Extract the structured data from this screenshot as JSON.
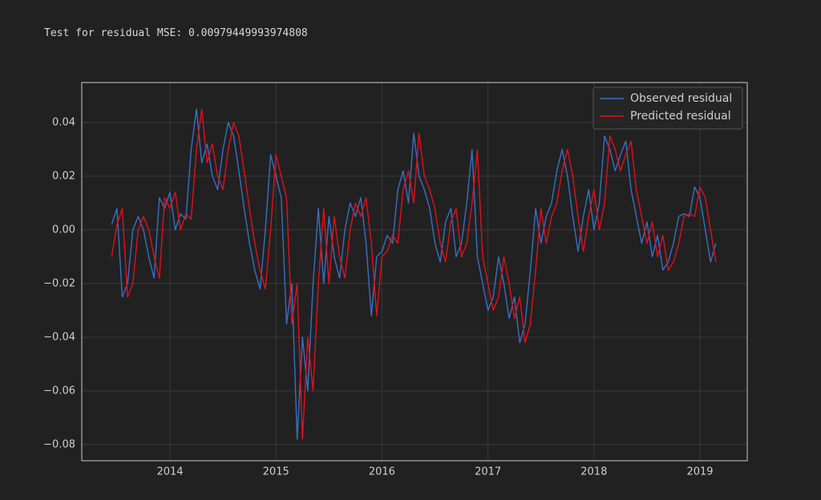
{
  "output_text": "Test for residual MSE: 0.00979449993974808",
  "chart_data": {
    "type": "line",
    "x": [
      2013.45,
      2013.5,
      2013.55,
      2013.6,
      2013.65,
      2013.7,
      2013.75,
      2013.8,
      2013.85,
      2013.9,
      2013.95,
      2014.0,
      2014.05,
      2014.1,
      2014.15,
      2014.2,
      2014.25,
      2014.3,
      2014.35,
      2014.4,
      2014.45,
      2014.5,
      2014.55,
      2014.6,
      2014.65,
      2014.7,
      2014.75,
      2014.8,
      2014.85,
      2014.9,
      2014.95,
      2015.0,
      2015.05,
      2015.1,
      2015.15,
      2015.2,
      2015.25,
      2015.3,
      2015.35,
      2015.4,
      2015.45,
      2015.5,
      2015.55,
      2015.6,
      2015.65,
      2015.7,
      2015.75,
      2015.8,
      2015.85,
      2015.9,
      2015.95,
      2016.0,
      2016.05,
      2016.1,
      2016.15,
      2016.2,
      2016.25,
      2016.3,
      2016.35,
      2016.4,
      2016.45,
      2016.5,
      2016.55,
      2016.6,
      2016.65,
      2016.7,
      2016.75,
      2016.8,
      2016.85,
      2016.9,
      2016.95,
      2017.0,
      2017.05,
      2017.1,
      2017.15,
      2017.2,
      2017.25,
      2017.3,
      2017.35,
      2017.4,
      2017.45,
      2017.5,
      2017.55,
      2017.6,
      2017.65,
      2017.7,
      2017.75,
      2017.8,
      2017.85,
      2017.9,
      2017.95,
      2018.0,
      2018.05,
      2018.1,
      2018.15,
      2018.2,
      2018.25,
      2018.3,
      2018.35,
      2018.4,
      2018.45,
      2018.5,
      2018.55,
      2018.6,
      2018.65,
      2018.7,
      2018.75,
      2018.8,
      2018.85,
      2018.9,
      2018.95,
      2019.0,
      2019.05,
      2019.1,
      2019.15
    ],
    "series": [
      {
        "name": "Observed residual",
        "color": "#3a6fc4",
        "values": [
          0.002,
          0.008,
          -0.025,
          -0.02,
          0.0,
          0.005,
          0.0,
          -0.01,
          -0.018,
          0.012,
          0.008,
          0.014,
          0.0,
          0.006,
          0.004,
          0.03,
          0.045,
          0.025,
          0.032,
          0.02,
          0.015,
          0.03,
          0.04,
          0.035,
          0.022,
          0.008,
          -0.005,
          -0.015,
          -0.022,
          0.0,
          0.028,
          0.02,
          0.012,
          -0.035,
          -0.02,
          -0.078,
          -0.04,
          -0.06,
          -0.02,
          0.008,
          -0.02,
          0.005,
          -0.01,
          -0.018,
          0.0,
          0.01,
          0.005,
          0.012,
          -0.005,
          -0.032,
          -0.01,
          -0.008,
          -0.002,
          -0.005,
          0.015,
          0.022,
          0.01,
          0.036,
          0.02,
          0.015,
          0.008,
          -0.005,
          -0.012,
          0.003,
          0.008,
          -0.01,
          -0.005,
          0.01,
          0.03,
          -0.01,
          -0.02,
          -0.03,
          -0.025,
          -0.01,
          -0.02,
          -0.033,
          -0.025,
          -0.042,
          -0.035,
          -0.015,
          0.008,
          -0.005,
          0.005,
          0.01,
          0.022,
          0.03,
          0.02,
          0.005,
          -0.008,
          0.005,
          0.015,
          0.0,
          0.01,
          0.035,
          0.03,
          0.022,
          0.028,
          0.033,
          0.015,
          0.005,
          -0.005,
          0.003,
          -0.01,
          -0.002,
          -0.015,
          -0.012,
          -0.005,
          0.005,
          0.006,
          0.005,
          0.016,
          0.012,
          0.0,
          -0.012,
          -0.005
        ]
      },
      {
        "name": "Predicted residual",
        "color": "#e0101e",
        "values": [
          -0.01,
          0.002,
          0.008,
          -0.025,
          -0.02,
          0.0,
          0.005,
          0.0,
          -0.01,
          -0.018,
          0.012,
          0.008,
          0.014,
          0.0,
          0.006,
          0.004,
          0.03,
          0.045,
          0.025,
          0.032,
          0.02,
          0.015,
          0.03,
          0.04,
          0.035,
          0.022,
          0.008,
          -0.005,
          -0.015,
          -0.022,
          0.0,
          0.028,
          0.02,
          0.012,
          -0.035,
          -0.02,
          -0.078,
          -0.04,
          -0.06,
          -0.02,
          0.008,
          -0.02,
          0.005,
          -0.01,
          -0.018,
          0.0,
          0.01,
          0.005,
          0.012,
          -0.005,
          -0.032,
          -0.01,
          -0.008,
          -0.002,
          -0.005,
          0.015,
          0.022,
          0.01,
          0.036,
          0.02,
          0.015,
          0.008,
          -0.005,
          -0.012,
          0.003,
          0.008,
          -0.01,
          -0.005,
          0.01,
          0.03,
          -0.01,
          -0.02,
          -0.03,
          -0.025,
          -0.01,
          -0.02,
          -0.033,
          -0.025,
          -0.042,
          -0.035,
          -0.015,
          0.008,
          -0.005,
          0.005,
          0.01,
          0.022,
          0.03,
          0.02,
          0.005,
          -0.008,
          0.005,
          0.015,
          0.0,
          0.01,
          0.035,
          0.03,
          0.022,
          0.028,
          0.033,
          0.015,
          0.005,
          -0.005,
          0.003,
          -0.01,
          -0.002,
          -0.015,
          -0.012,
          -0.005,
          0.005,
          0.006,
          0.005,
          0.016,
          0.012,
          0.0,
          -0.012
        ]
      }
    ],
    "xlim": [
      2013.168,
      2019.446
    ],
    "ylim": [
      -0.086,
      0.0549
    ],
    "xticks": [
      2014,
      2015,
      2016,
      2017,
      2018,
      2019
    ],
    "yticks": [
      0.04,
      0.02,
      {
        "value": 0,
        "label": "0.00"
      },
      {
        "value": -0.02,
        "label": "−0.02"
      },
      {
        "value": -0.04,
        "label": "−0.04"
      },
      {
        "value": -0.06,
        "label": "−0.06"
      },
      {
        "value": -0.08,
        "label": "−0.08"
      }
    ],
    "grid": true,
    "legend": "upper right"
  }
}
